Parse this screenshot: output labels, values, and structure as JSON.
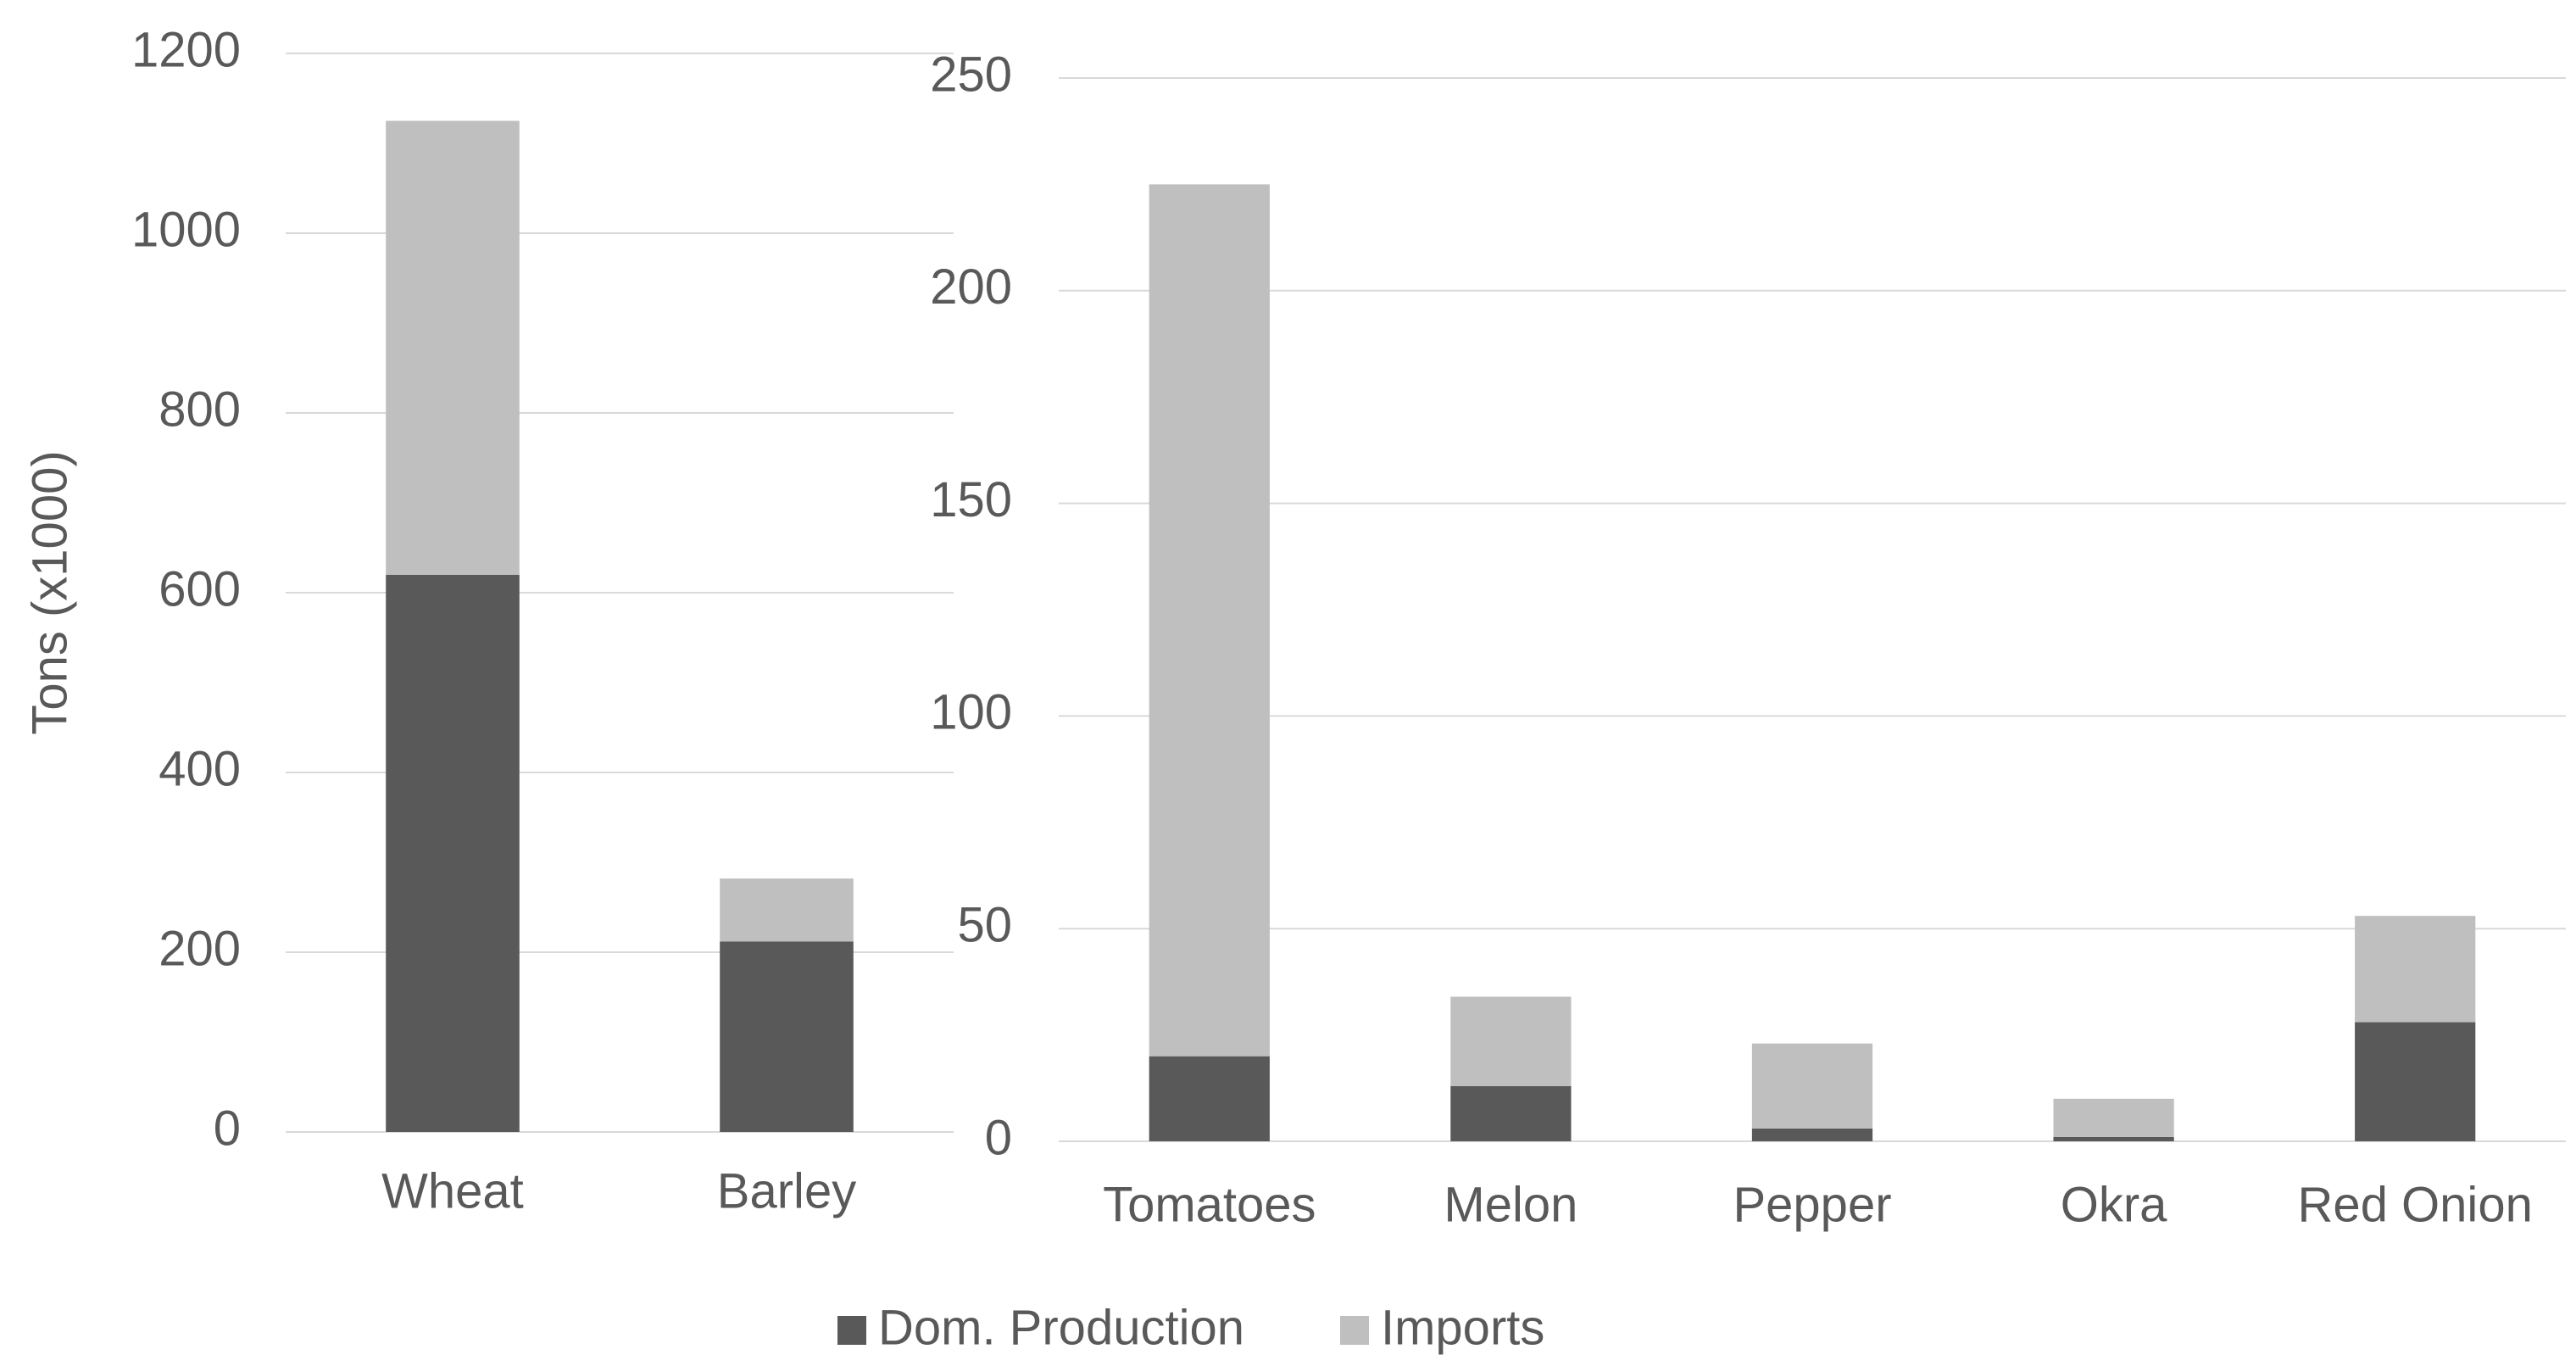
{
  "chart_data": [
    {
      "type": "stacked-bar",
      "y_label": "Tons (x1000)",
      "categories": [
        "Wheat",
        "Barley"
      ],
      "series": [
        {
          "color": "#595959",
          "values": [
            620,
            212
          ]
        },
        {
          "color": "#bfbfbf",
          "values": [
            505,
            70
          ]
        }
      ],
      "ylim": [
        0,
        1200
      ],
      "yticks": [
        0,
        200,
        400,
        600,
        800,
        1000,
        1200
      ],
      "grid": true
    },
    {
      "type": "stacked-bar",
      "categories": [
        "Tomatoes",
        "Melon",
        "Pepper",
        "Okra",
        "Red Onion"
      ],
      "series": [
        {
          "color": "#595959",
          "values": [
            20,
            13,
            3,
            1,
            28
          ]
        },
        {
          "color": "#bfbfbf",
          "values": [
            205,
            21,
            20,
            9,
            25
          ]
        }
      ],
      "ylim": [
        0,
        250
      ],
      "yticks": [
        0,
        50,
        100,
        150,
        200,
        250
      ],
      "grid": true
    }
  ],
  "legend": {
    "position": "bottom",
    "items": [
      "Dom. Production",
      "Imports"
    ]
  }
}
